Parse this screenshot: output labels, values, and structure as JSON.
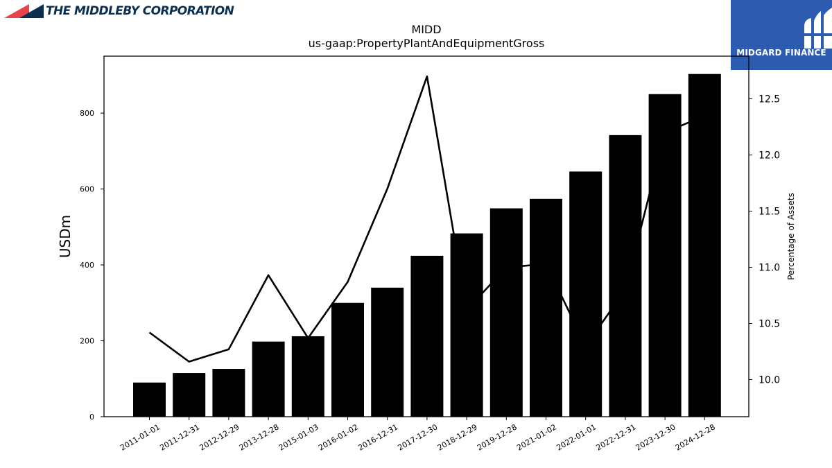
{
  "header": {
    "company_name": "THE MIDDLEBY CORPORATION",
    "brand_name": "MIDGARD FINANCE"
  },
  "colors": {
    "logo_red": "#e8424a",
    "logo_navy": "#0d2f4f",
    "brand_blue": "#2d5bb0",
    "bars": "#000000",
    "line": "#000000"
  },
  "icons": {
    "company_logo": "middleby-flag-icon",
    "brand_logo": "midgard-finance-icon"
  },
  "chart_data": {
    "type": "bar",
    "title": "MIDD",
    "subtitle": "us-gaap:PropertyPlantAndEquipmentGross",
    "ylabel": "USDm",
    "y2label": "Percentage of Assets",
    "categories": [
      "2011-01-01",
      "2011-12-31",
      "2012-12-29",
      "2013-12-28",
      "2015-01-03",
      "2016-01-02",
      "2016-12-31",
      "2017-12-30",
      "2018-12-29",
      "2019-12-28",
      "2021-01-02",
      "2022-01-01",
      "2022-12-31",
      "2023-12-30",
      "2024-12-28"
    ],
    "series": [
      {
        "axis": "left",
        "type": "bar",
        "values": [
          90,
          115,
          126,
          198,
          212,
          300,
          340,
          424,
          483,
          549,
          574,
          646,
          742,
          850,
          903
        ]
      },
      {
        "axis": "right",
        "type": "line",
        "values": [
          10.42,
          10.16,
          10.27,
          10.93,
          10.37,
          10.87,
          11.7,
          12.7,
          10.62,
          11.0,
          11.03,
          10.3,
          10.8,
          12.2,
          12.35
        ]
      }
    ],
    "ylim": [
      0,
      950
    ],
    "y2lim": [
      9.67,
      12.88
    ],
    "yticks": [
      0,
      200,
      400,
      600,
      800
    ],
    "y2ticks": [
      10.0,
      10.5,
      11.0,
      11.5,
      12.0,
      12.5
    ],
    "grid": false,
    "legend": "none"
  }
}
